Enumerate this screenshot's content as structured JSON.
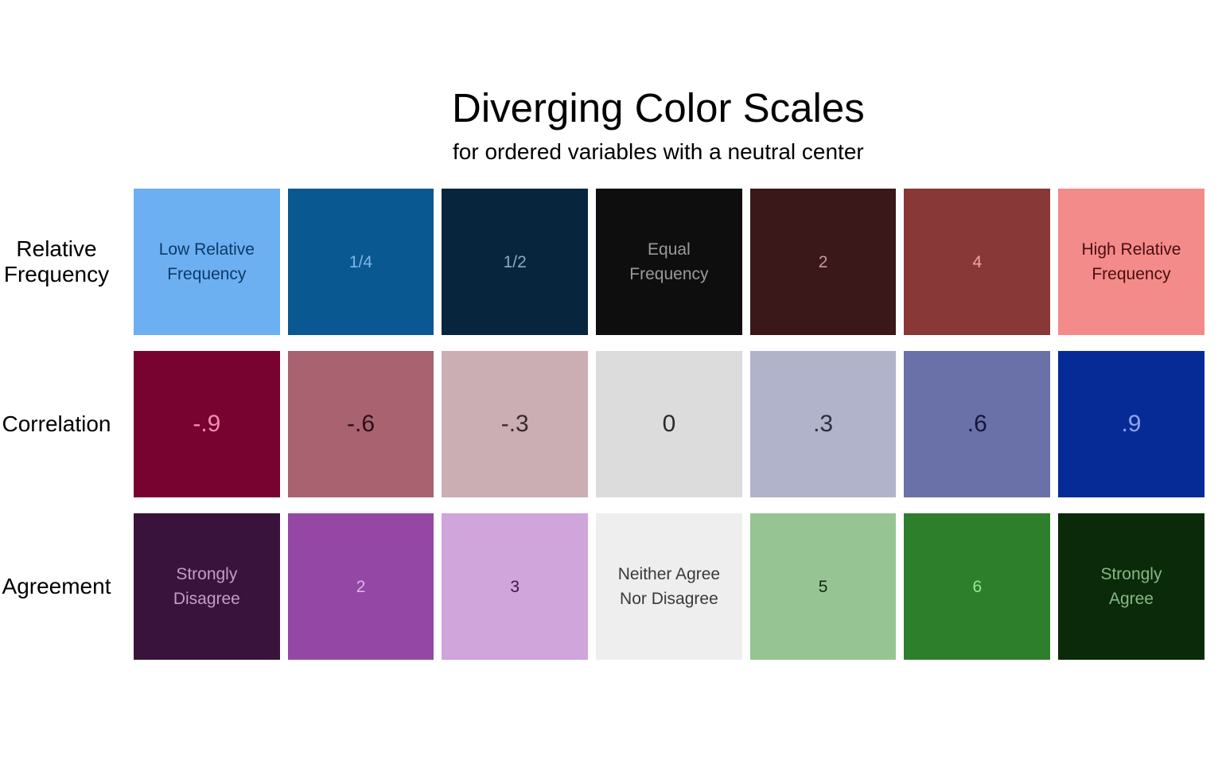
{
  "title": "Diverging Color Scales",
  "subtitle": "for ordered variables with a neutral center",
  "rows": [
    {
      "label": "Relative\nFrequency",
      "size": "small",
      "cells": [
        {
          "text": "Low Relative\nFrequency",
          "bg": "#6cb0f2",
          "fg": "#0b3a6a"
        },
        {
          "text": "1/4",
          "bg": "#0a5891",
          "fg": "#7fb6e8"
        },
        {
          "text": "1/2",
          "bg": "#07263d",
          "fg": "#8aa9c4"
        },
        {
          "text": "Equal\nFrequency",
          "bg": "#0e0e0e",
          "fg": "#9a9a9a"
        },
        {
          "text": "2",
          "bg": "#3a1719",
          "fg": "#c7999b"
        },
        {
          "text": "4",
          "bg": "#883836",
          "fg": "#f0a6a3"
        },
        {
          "text": "High Relative\nFrequency",
          "bg": "#f38b8a",
          "fg": "#4a0e0e"
        }
      ]
    },
    {
      "label": "Correlation",
      "size": "large",
      "cells": [
        {
          "text": "-.9",
          "bg": "#780230",
          "fg": "#f48db0"
        },
        {
          "text": "-.6",
          "bg": "#a86270",
          "fg": "#2e0e16"
        },
        {
          "text": "-.3",
          "bg": "#cbaeb4",
          "fg": "#3a2a2e"
        },
        {
          "text": "0",
          "bg": "#dcdcdc",
          "fg": "#2a2a2a"
        },
        {
          "text": ".3",
          "bg": "#b1b3cb",
          "fg": "#2c2e40"
        },
        {
          "text": ".6",
          "bg": "#6a70a8",
          "fg": "#14183a"
        },
        {
          "text": ".9",
          "bg": "#062b97",
          "fg": "#8fa4ee"
        }
      ]
    },
    {
      "label": "Agreement",
      "size": "small",
      "cells": [
        {
          "text": "Strongly\nDisagree",
          "bg": "#39133b",
          "fg": "#c59bc8"
        },
        {
          "text": "2",
          "bg": "#9547a6",
          "fg": "#e0b2ea"
        },
        {
          "text": "3",
          "bg": "#cfa5dc",
          "fg": "#3e1548"
        },
        {
          "text": "Neither Agree\nNor Disagree",
          "bg": "#eeeeee",
          "fg": "#3a3a3a"
        },
        {
          "text": "5",
          "bg": "#96c593",
          "fg": "#0e2a0e"
        },
        {
          "text": "6",
          "bg": "#2d7f2b",
          "fg": "#9ee39a"
        },
        {
          "text": "Strongly\nAgree",
          "bg": "#0a2a0a",
          "fg": "#86b884"
        }
      ]
    }
  ]
}
